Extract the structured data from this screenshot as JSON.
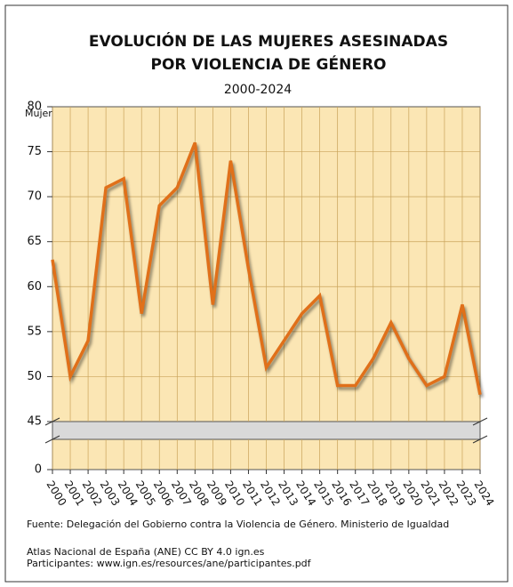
{
  "chart_data": {
    "type": "line",
    "title": [
      "EVOLUCIÓN DE LAS MUJERES ASESINADAS",
      "POR VIOLENCIA DE GÉNERO"
    ],
    "subtitle": "2000-2024",
    "y_label": "Mujeres",
    "categories": [
      "2000",
      "2001",
      "2002",
      "2003",
      "2004",
      "2005",
      "2006",
      "2007",
      "2008",
      "2009",
      "2010",
      "2011",
      "2012",
      "2013",
      "2014",
      "2015",
      "2016",
      "2017",
      "2018",
      "2019",
      "2020",
      "2021",
      "2022",
      "2023",
      "2024"
    ],
    "series": [
      {
        "name": "Mujeres",
        "color": "#e0701a",
        "values": [
          63,
          50,
          54,
          71,
          72,
          57,
          69,
          71,
          76,
          58,
          74,
          62,
          51,
          54,
          57,
          59,
          49,
          49,
          52,
          56,
          52,
          49,
          50,
          58,
          48
        ]
      }
    ],
    "ylim": [
      0,
      80
    ],
    "axis_break": [
      0,
      45
    ],
    "yticks": [
      0,
      45,
      50,
      55,
      60,
      65,
      70,
      75,
      80
    ],
    "grid": true,
    "source": "Fuente: Delegación del Gobierno contra la Violencia de Género. Ministerio de Igualdad",
    "notes": [
      "Atlas Nacional de España (ANE) CC BY 4.0 ign.es",
      "Participantes: www.ign.es/resources/ane/participantes.pdf"
    ]
  }
}
